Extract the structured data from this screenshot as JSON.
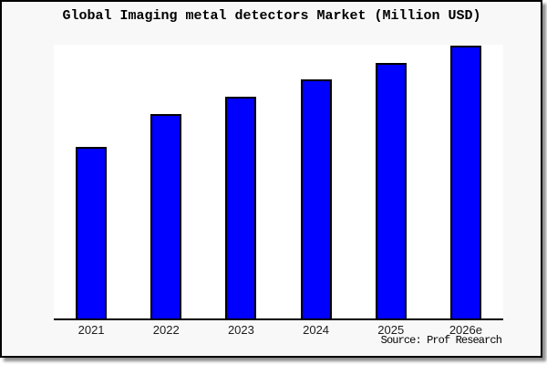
{
  "chart": {
    "title": "Global Imaging metal detectors Market (Million USD)",
    "source": "Source: Prof Research"
  },
  "chart_data": {
    "type": "bar",
    "title": "Global Imaging metal detectors Market (Million USD)",
    "categories": [
      "2021",
      "2022",
      "2023",
      "2024",
      "2025",
      "2026e"
    ],
    "values": [
      62.9,
      74.9,
      81.4,
      87.6,
      93.6,
      100.0
    ],
    "value_note": "No y-axis scale or value labels are shown in the image; values are relative bar heights normalized so the tallest bar (2026e) = 100",
    "xlabel": "",
    "ylabel": "",
    "ylim": [
      0,
      100.3
    ],
    "grid": false,
    "legend": false,
    "bar_color": "#0000ff",
    "bar_border_color": "#000000",
    "annotations": [
      "Source: Prof Research"
    ]
  },
  "colors": {
    "margin_background": "#f8f8f8",
    "plot_background": "#ffffff",
    "frame_border": "#000000",
    "axis": "#000000",
    "bar_fill": "#0000ff",
    "text": "#000000"
  }
}
